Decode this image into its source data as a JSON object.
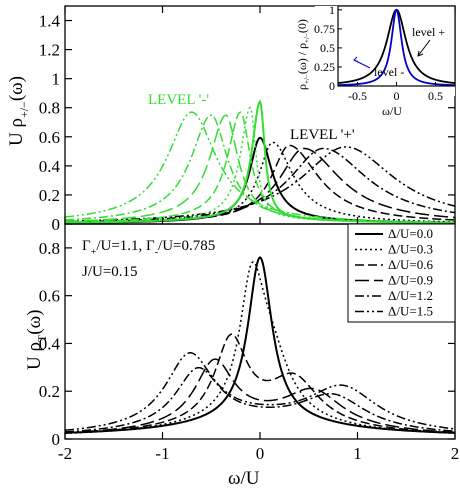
{
  "chart_data": [
    {
      "id": "top",
      "type": "line",
      "ylabel_main": "U ρ",
      "ylabel_sub": "+/−",
      "ylabel_tail": "(ω)",
      "xlim": [
        -2,
        2
      ],
      "ylim": [
        0,
        1.5
      ],
      "yticks": [
        "0",
        "0.2",
        "0.4",
        "0.6",
        "0.8",
        "1",
        "1.2",
        "1.4"
      ],
      "annotations": [
        {
          "text": "LEVEL '-'",
          "color": "#33dd33"
        },
        {
          "text": "LEVEL '+'",
          "color": "#000000"
        }
      ],
      "series_plus": [
        {
          "delta": 0.0,
          "peak_x": 0.0,
          "peak_y": 0.57,
          "left_width": 0.13,
          "right_width": 0.15
        },
        {
          "delta": 0.3,
          "peak_x": 0.13,
          "peak_y": 0.54,
          "left_width": 0.17,
          "right_width": 0.25
        },
        {
          "delta": 0.6,
          "peak_x": 0.3,
          "peak_y": 0.52,
          "left_width": 0.22,
          "right_width": 0.36
        },
        {
          "delta": 0.9,
          "peak_x": 0.45,
          "peak_y": 0.5,
          "left_width": 0.3,
          "right_width": 0.45
        },
        {
          "delta": 1.2,
          "peak_x": 0.65,
          "peak_y": 0.5,
          "left_width": 0.42,
          "right_width": 0.55
        },
        {
          "delta": 1.5,
          "peak_x": 0.88,
          "peak_y": 0.51,
          "left_width": 0.55,
          "right_width": 0.6
        }
      ],
      "series_minus": [
        {
          "delta": 0.0,
          "peak_x": 0.0,
          "peak_y": 0.81,
          "left_width": 0.1,
          "right_width": 0.06
        },
        {
          "delta": 0.3,
          "peak_x": -0.1,
          "peak_y": 0.77,
          "left_width": 0.12,
          "right_width": 0.07
        },
        {
          "delta": 0.6,
          "peak_x": -0.2,
          "peak_y": 0.74,
          "left_width": 0.16,
          "right_width": 0.12
        },
        {
          "delta": 0.9,
          "peak_x": -0.35,
          "peak_y": 0.72,
          "left_width": 0.2,
          "right_width": 0.15
        },
        {
          "delta": 1.2,
          "peak_x": -0.5,
          "peak_y": 0.72,
          "left_width": 0.25,
          "right_width": 0.2
        },
        {
          "delta": 1.5,
          "peak_x": -0.7,
          "peak_y": 0.74,
          "left_width": 0.3,
          "right_width": 0.3
        }
      ],
      "inset": {
        "ylabel_main": "ρ",
        "ylabel_sub": "+/−",
        "ylabel_mid": "(ω) / ρ",
        "ylabel_sub2": "+/−",
        "ylabel_tail": "(0)",
        "xlabel": "ω/U",
        "xlim": [
          -0.75,
          0.75
        ],
        "ylim": [
          0,
          1.05
        ],
        "xticks": [
          "-0.5",
          "0",
          "0.5"
        ],
        "yticks": [
          "0",
          "0.25",
          "0.5",
          "0.75",
          "1"
        ],
        "labels": [
          {
            "text": "level +",
            "color": "#000000"
          },
          {
            "text": "level -",
            "color": "#000000"
          }
        ],
        "series": [
          {
            "name": "level +",
            "color": "#000000",
            "width": 0.15
          },
          {
            "name": "level -",
            "color": "#0000cc",
            "width": 0.08
          }
        ]
      }
    },
    {
      "id": "bottom",
      "type": "line",
      "ylabel_main": "U ρ",
      "ylabel_sub": "T",
      "ylabel_tail": "(ω)",
      "xlabel": "ω/U",
      "xlim": [
        -2,
        2
      ],
      "ylim": [
        0,
        0.9
      ],
      "xticks": [
        "-2",
        "-1",
        "0",
        "1",
        "2"
      ],
      "yticks": [
        "0",
        "0.2",
        "0.4",
        "0.6",
        "0.8"
      ],
      "params": {
        "line1_a": "Γ",
        "line1_a_sub": "+",
        "line1_b": "/U=1.1, Γ",
        "line1_b_sub": "-",
        "line1_c": "/U=0.785",
        "line2": "J/U=0.15"
      },
      "legend": {
        "placement": "right",
        "entries": [
          "Δ/U=0.0",
          "Δ/U=0.3",
          "Δ/U=0.6",
          "Δ/U=0.9",
          "Δ/U=1.2",
          "Δ/U=1.5"
        ]
      },
      "series": [
        {
          "delta": 0.0,
          "peak_x": 0.0,
          "peak_y": 0.69,
          "gap": 0
        },
        {
          "delta": 0.3,
          "peak_x": 0.05,
          "peak_y": 0.63,
          "gap": 0.1
        },
        {
          "delta": 0.6,
          "peak_x": 0.05,
          "peak_y": 0.43,
          "gap": 0.35
        },
        {
          "delta": 0.9,
          "peak_x": 0.0,
          "peak_y": 0.33,
          "gap": 0.55
        },
        {
          "delta": 1.2,
          "peak_x": 0.0,
          "peak_y": 0.3,
          "gap": 0.75
        },
        {
          "delta": 1.5,
          "peak_x": 0.0,
          "peak_y": 0.38,
          "gap": 0.85
        }
      ]
    }
  ]
}
